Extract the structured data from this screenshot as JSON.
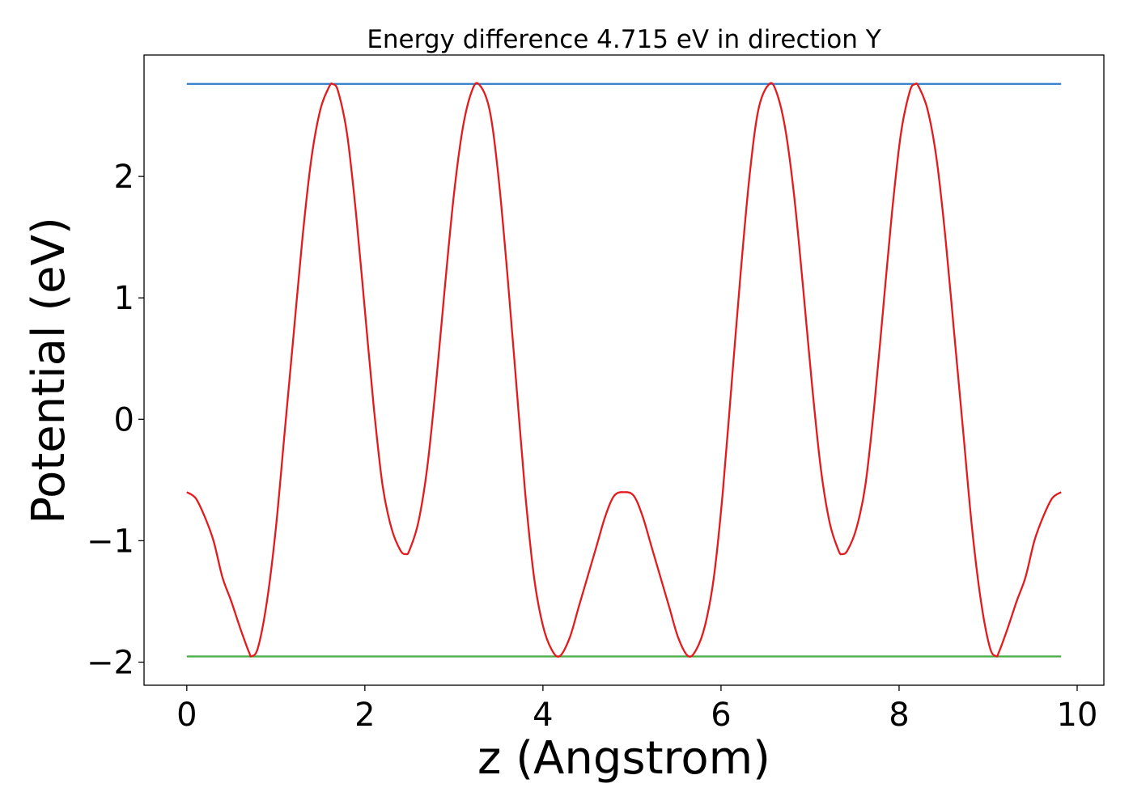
{
  "chart_data": {
    "type": "line",
    "title": "Energy difference 4.715 eV in direction Y",
    "xlabel": "z (Angstrom)",
    "ylabel": "Potential (eV)",
    "xlim": [
      -0.48,
      10.3
    ],
    "ylim": [
      -2.19,
      3.0
    ],
    "xticks": [
      0,
      2,
      4,
      6,
      8,
      10
    ],
    "xtick_labels": [
      "0",
      "2",
      "4",
      "6",
      "8",
      "10"
    ],
    "yticks": [
      -2,
      -1,
      0,
      1,
      2
    ],
    "ytick_labels": [
      "−2",
      "−1",
      "0",
      "1",
      "2"
    ],
    "grid": false,
    "series": [
      {
        "name": "potential",
        "color": "#e41a1c",
        "x": [
          0,
          0.1,
          0.2,
          0.3,
          0.4,
          0.5,
          0.6,
          0.7,
          0.73,
          0.8,
          0.9,
          1.0,
          1.1,
          1.2,
          1.3,
          1.4,
          1.5,
          1.6,
          1.64,
          1.7,
          1.8,
          1.9,
          2.0,
          2.1,
          2.2,
          2.3,
          2.4,
          2.46,
          2.5,
          2.6,
          2.7,
          2.8,
          2.9,
          3.0,
          3.1,
          3.2,
          3.28,
          3.4,
          3.5,
          3.6,
          3.7,
          3.8,
          3.9,
          4.0,
          4.1,
          4.19,
          4.3,
          4.4,
          4.5,
          4.6,
          4.7,
          4.8,
          4.91,
          5.02,
          5.12,
          5.22,
          5.32,
          5.42,
          5.52,
          5.63,
          5.72,
          5.82,
          5.92,
          6.02,
          6.12,
          6.22,
          6.32,
          6.42,
          6.54,
          6.62,
          6.72,
          6.82,
          6.92,
          7.02,
          7.12,
          7.22,
          7.32,
          7.36,
          7.42,
          7.52,
          7.62,
          7.72,
          7.82,
          7.92,
          8.02,
          8.12,
          8.18,
          8.22,
          8.32,
          8.42,
          8.52,
          8.62,
          8.72,
          8.82,
          8.92,
          9.02,
          9.09,
          9.12,
          9.22,
          9.32,
          9.42,
          9.52,
          9.62,
          9.72,
          9.82
        ],
        "y": [
          -0.6,
          -0.65,
          -0.8,
          -1.0,
          -1.3,
          -1.5,
          -1.72,
          -1.92,
          -1.95,
          -1.88,
          -1.5,
          -0.9,
          -0.1,
          0.7,
          1.5,
          2.15,
          2.55,
          2.74,
          2.76,
          2.7,
          2.35,
          1.7,
          0.9,
          0.1,
          -0.55,
          -0.9,
          -1.08,
          -1.11,
          -1.08,
          -0.85,
          -0.4,
          0.3,
          1.1,
          1.85,
          2.4,
          2.7,
          2.76,
          2.55,
          2.0,
          1.2,
          0.3,
          -0.6,
          -1.3,
          -1.7,
          -1.9,
          -1.95,
          -1.8,
          -1.55,
          -1.3,
          -1.05,
          -0.8,
          -0.63,
          -0.6,
          -0.63,
          -0.8,
          -1.05,
          -1.3,
          -1.55,
          -1.8,
          -1.95,
          -1.9,
          -1.7,
          -1.3,
          -0.6,
          0.3,
          1.2,
          2.0,
          2.55,
          2.76,
          2.7,
          2.4,
          1.85,
          1.1,
          0.3,
          -0.4,
          -0.85,
          -1.08,
          -1.11,
          -1.08,
          -0.9,
          -0.55,
          0.1,
          0.9,
          1.7,
          2.35,
          2.7,
          2.76,
          2.74,
          2.55,
          2.15,
          1.5,
          0.7,
          -0.1,
          -0.9,
          -1.5,
          -1.88,
          -1.95,
          -1.92,
          -1.72,
          -1.5,
          -1.3,
          -1.0,
          -0.8,
          -0.65,
          -0.6
        ]
      },
      {
        "name": "maximum",
        "color": "#2b7bc8",
        "x": [
          0,
          9.82
        ],
        "y": [
          2.762,
          2.762
        ]
      },
      {
        "name": "minimum",
        "color": "#4daf4a",
        "x": [
          0,
          9.82
        ],
        "y": [
          -1.953,
          -1.953
        ]
      }
    ]
  }
}
